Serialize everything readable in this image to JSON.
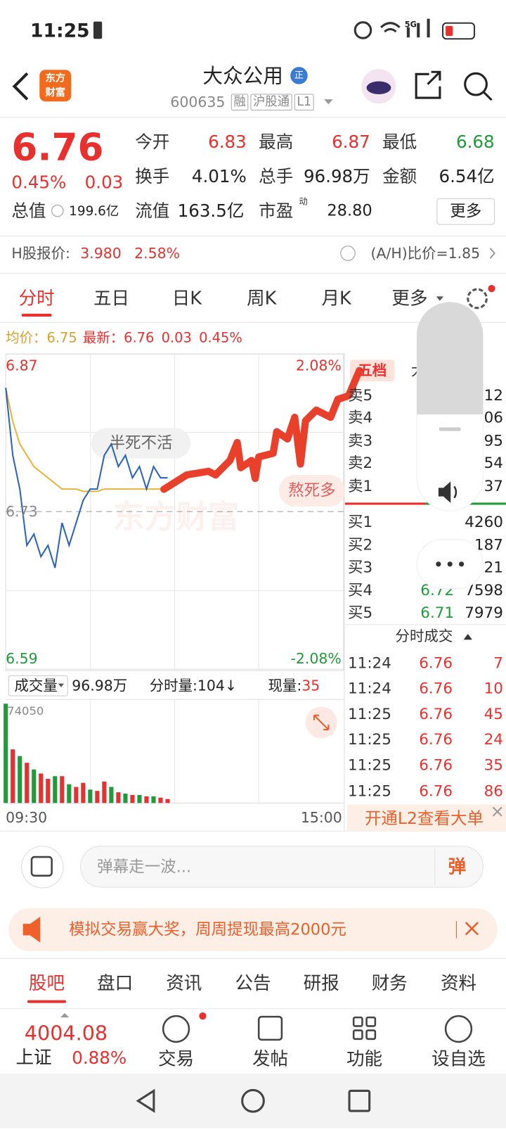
{
  "status_bar": {
    "time": "11:25",
    "network": "5G"
  },
  "header": {
    "logo": [
      "东方",
      "财富"
    ],
    "title": "大众公用",
    "badge": "正",
    "code": "600635",
    "tags": [
      "融",
      "沪股通",
      "L1"
    ]
  },
  "quote": {
    "price": "6.76",
    "change_pct": "0.45%",
    "change": "0.03",
    "fields": [
      {
        "label": "今开",
        "value": "6.83"
      },
      {
        "label": "最高",
        "value": "6.87"
      },
      {
        "label": "最低",
        "value": "6.68"
      },
      {
        "label": "换手",
        "value": "4.01%"
      },
      {
        "label": "总手",
        "value": "96.98万"
      },
      {
        "label": "金额",
        "value": "6.54亿"
      }
    ],
    "total_cap": {
      "label": "总值",
      "value": "199.6亿"
    },
    "float_cap": {
      "label": "流值",
      "value": "163.5亿"
    },
    "pe": {
      "label": "市盈",
      "sup": "动",
      "value": "28.80"
    },
    "more": "更多"
  },
  "h_share": {
    "label": "H股报价:",
    "price": "3.980",
    "change_pct": "2.58%",
    "ratio": "(A/H)比价=1.85"
  },
  "tabs": [
    "分时",
    "五日",
    "日K",
    "周K",
    "月K",
    "更多"
  ],
  "intraday": {
    "avg_label": "均价：",
    "avg": "6.75",
    "latest_label": "最新：",
    "latest": "6.76",
    "change": "0.03",
    "change_pct": "0.45%",
    "chart_data": {
      "type": "line",
      "x": [
        0,
        5,
        10,
        15,
        20,
        25,
        30,
        35,
        40,
        45,
        50,
        55,
        60,
        65,
        70,
        75,
        80,
        85,
        90,
        95,
        100,
        105,
        110,
        115
      ],
      "xlim": [
        0,
        240
      ],
      "xticks": [
        {
          "value": 0,
          "label": "09:30"
        },
        {
          "value": 240,
          "label": "15:00"
        }
      ],
      "ylim": [
        6.59,
        6.87
      ],
      "yticks": [
        6.59,
        6.73,
        6.87
      ],
      "y2lim": [
        -2.08,
        2.08
      ],
      "y2ticks": [
        {
          "value": -2.08,
          "label": "-2.08%"
        },
        {
          "value": 2.08,
          "label": "2.08%"
        }
      ],
      "series": [
        {
          "color": "#2b63b8",
          "values": [
            6.84,
            6.78,
            6.75,
            6.7,
            6.71,
            6.69,
            6.7,
            6.68,
            6.72,
            6.7,
            6.72,
            6.74,
            6.75,
            6.75,
            6.78,
            6.79,
            6.77,
            6.78,
            6.76,
            6.77,
            6.75,
            6.77,
            6.76,
            6.76
          ]
        },
        {
          "color": "#e9b43a",
          "values": [
            6.84,
            6.81,
            6.79,
            6.78,
            6.77,
            6.765,
            6.76,
            6.755,
            6.75,
            6.75,
            6.75,
            6.748,
            6.748,
            6.748,
            6.75,
            6.75,
            6.75,
            6.75,
            6.75,
            6.75,
            6.75,
            6.75,
            6.75,
            6.75
          ]
        }
      ]
    }
  },
  "volume": {
    "label": "成交量",
    "total": "96.98万",
    "period_label": "分时量:",
    "period": "104↓",
    "current_label": "现量:",
    "current": "35",
    "chart_data": {
      "type": "bar",
      "x": [
        0,
        5,
        10,
        15,
        20,
        25,
        30,
        35,
        40,
        45,
        50,
        55,
        60,
        65,
        70,
        75,
        80,
        85,
        90,
        95,
        100,
        105,
        110,
        115
      ],
      "xlim": [
        0,
        240
      ],
      "ylim": [
        0,
        74050
      ],
      "yticks": [
        74050
      ],
      "series": [
        {
          "color": "#e8312f",
          "values": [
            null,
            40000,
            null,
            30000,
            null,
            22000,
            18000,
            null,
            20000,
            null,
            12000,
            15000,
            null,
            9000,
            16000,
            null,
            8000,
            null,
            6000,
            null,
            5000,
            null,
            4000,
            3000
          ]
        },
        {
          "color": "#1f9b3a",
          "values": [
            74050,
            null,
            35000,
            null,
            25000,
            null,
            null,
            20000,
            null,
            14000,
            null,
            null,
            10000,
            null,
            null,
            12000,
            null,
            7000,
            null,
            6000,
            null,
            5000,
            null,
            null
          ]
        }
      ]
    }
  },
  "annotations": [
    "半死不活",
    "熬死多"
  ],
  "watermark": "东方财富",
  "order_book": {
    "tabs": [
      "五档",
      "大"
    ],
    "asks": [
      {
        "label": "卖5",
        "volume": "12"
      },
      {
        "label": "卖4",
        "volume": "06"
      },
      {
        "label": "卖3",
        "volume": "95"
      },
      {
        "label": "卖2",
        "volume": "54"
      },
      {
        "label": "卖1",
        "volume": "37"
      }
    ],
    "bids": [
      {
        "label": "买1",
        "volume": "4260"
      },
      {
        "label": "买2",
        "volume": "187"
      },
      {
        "label": "买3",
        "volume": "21"
      },
      {
        "label": "买4",
        "price": "6.72",
        "volume": "7598"
      },
      {
        "label": "买5",
        "price": "6.71",
        "volume": "7979"
      }
    ]
  },
  "trades": {
    "title": "分时成交",
    "rows": [
      [
        "11:24",
        "6.76",
        "7"
      ],
      [
        "11:24",
        "6.76",
        "10"
      ],
      [
        "11:25",
        "6.76",
        "45"
      ],
      [
        "11:25",
        "6.76",
        "24"
      ],
      [
        "11:25",
        "6.76",
        "35"
      ],
      [
        "11:25",
        "6.76",
        "86"
      ]
    ]
  },
  "l2_banner": "开通L2查看大单",
  "comment": {
    "placeholder": "弹幕走一波...",
    "button": "弹"
  },
  "banner": "模拟交易赢大奖，周周提现最高2000元",
  "bottom_tabs": [
    "股吧",
    "盘口",
    "资讯",
    "公告",
    "研报",
    "财务",
    "资料"
  ],
  "nav": {
    "index_value": "4004.08",
    "index_name": "上证",
    "index_change": "0.88%",
    "items": [
      "交易",
      "发帖",
      "功能",
      "设自选"
    ]
  }
}
